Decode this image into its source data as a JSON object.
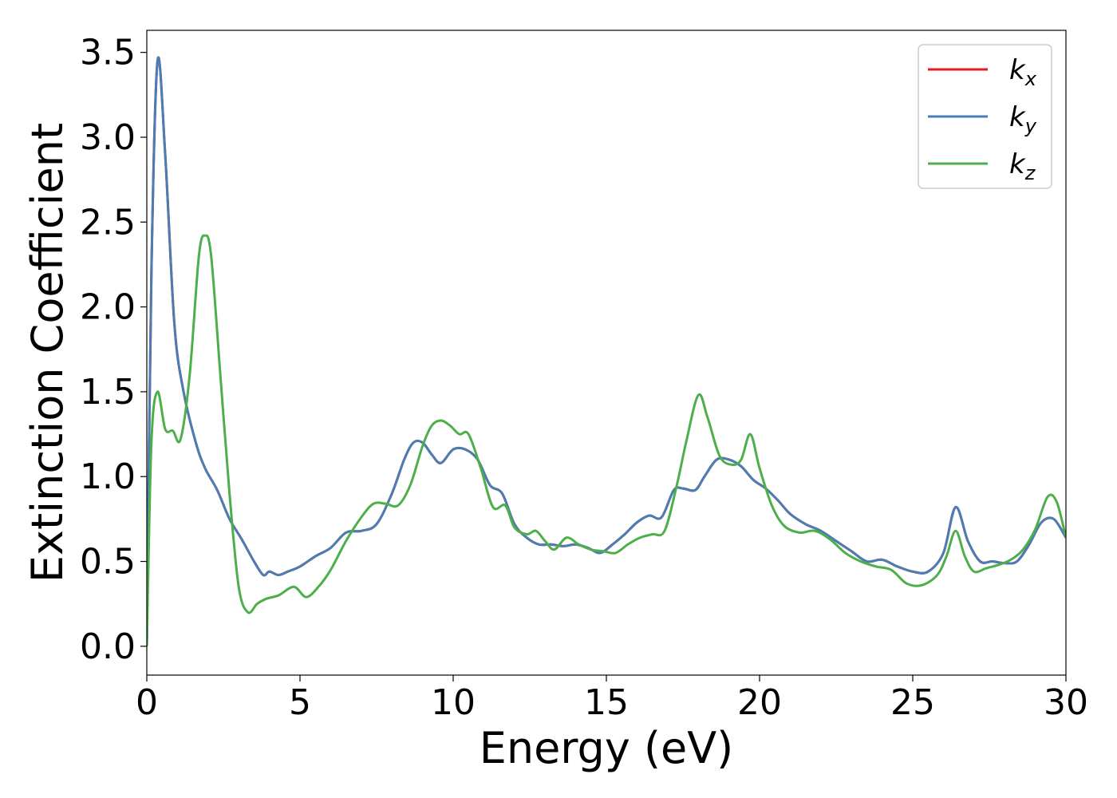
{
  "chart_data": {
    "type": "line",
    "xlabel": "Energy (eV)",
    "ylabel": "Extinction Coefficient",
    "xlim": [
      0,
      30
    ],
    "ylim": [
      -0.17,
      3.63
    ],
    "xticks": [
      0,
      5,
      10,
      15,
      20,
      25,
      30
    ],
    "xtick_labels": [
      "0",
      "5",
      "10",
      "15",
      "20",
      "25",
      "30"
    ],
    "yticks": [
      0.0,
      0.5,
      1.0,
      1.5,
      2.0,
      2.5,
      3.0,
      3.5
    ],
    "ytick_labels": [
      "0.0",
      "0.5",
      "1.0",
      "1.5",
      "2.0",
      "2.5",
      "3.0",
      "3.5"
    ],
    "grid": false,
    "legend_position": "top-right",
    "series": [
      {
        "name": "k",
        "subscript": "x",
        "color": "#e41a1c",
        "x": [
          0,
          0.15,
          0.35,
          0.6,
          0.9,
          1.2,
          1.6,
          1.9,
          2.3,
          2.7,
          3.1,
          3.5,
          3.8,
          4.0,
          4.3,
          4.6,
          5.0,
          5.5,
          6.0,
          6.5,
          7.0,
          7.5,
          8.0,
          8.4,
          8.7,
          9.0,
          9.3,
          9.6,
          10.0,
          10.4,
          10.8,
          11.2,
          11.6,
          12.0,
          12.4,
          12.8,
          13.2,
          13.6,
          14.0,
          14.4,
          14.8,
          15.2,
          15.6,
          16.0,
          16.4,
          16.8,
          17.2,
          17.5,
          17.9,
          18.2,
          18.6,
          19.0,
          19.4,
          19.8,
          20.2,
          20.6,
          21.0,
          21.5,
          22.0,
          22.5,
          23.0,
          23.5,
          24.0,
          24.5,
          25.0,
          25.5,
          26.0,
          26.4,
          26.8,
          27.2,
          27.6,
          28.0,
          28.4,
          28.8,
          29.2,
          29.6,
          30.0
        ],
        "y": [
          0.0,
          2.2,
          3.45,
          2.9,
          1.9,
          1.5,
          1.2,
          1.05,
          0.92,
          0.75,
          0.63,
          0.5,
          0.42,
          0.44,
          0.42,
          0.44,
          0.47,
          0.53,
          0.58,
          0.67,
          0.68,
          0.72,
          0.9,
          1.1,
          1.2,
          1.2,
          1.13,
          1.08,
          1.16,
          1.16,
          1.1,
          0.95,
          0.9,
          0.72,
          0.64,
          0.6,
          0.6,
          0.59,
          0.6,
          0.58,
          0.55,
          0.6,
          0.66,
          0.73,
          0.77,
          0.76,
          0.92,
          0.93,
          0.92,
          1.0,
          1.1,
          1.1,
          1.06,
          0.98,
          0.93,
          0.86,
          0.78,
          0.72,
          0.68,
          0.62,
          0.56,
          0.5,
          0.51,
          0.47,
          0.44,
          0.44,
          0.55,
          0.82,
          0.62,
          0.5,
          0.5,
          0.49,
          0.5,
          0.6,
          0.73,
          0.75,
          0.64
        ]
      },
      {
        "name": "k",
        "subscript": "y",
        "color": "#4a7db3",
        "x": [
          0,
          0.15,
          0.35,
          0.6,
          0.9,
          1.2,
          1.6,
          1.9,
          2.3,
          2.7,
          3.1,
          3.5,
          3.8,
          4.0,
          4.3,
          4.6,
          5.0,
          5.5,
          6.0,
          6.5,
          7.0,
          7.5,
          8.0,
          8.4,
          8.7,
          9.0,
          9.3,
          9.6,
          10.0,
          10.4,
          10.8,
          11.2,
          11.6,
          12.0,
          12.4,
          12.8,
          13.2,
          13.6,
          14.0,
          14.4,
          14.8,
          15.2,
          15.6,
          16.0,
          16.4,
          16.8,
          17.2,
          17.5,
          17.9,
          18.2,
          18.6,
          19.0,
          19.4,
          19.8,
          20.2,
          20.6,
          21.0,
          21.5,
          22.0,
          22.5,
          23.0,
          23.5,
          24.0,
          24.5,
          25.0,
          25.5,
          26.0,
          26.4,
          26.8,
          27.2,
          27.6,
          28.0,
          28.4,
          28.8,
          29.2,
          29.6,
          30.0
        ],
        "y": [
          0.0,
          2.2,
          3.45,
          2.9,
          1.9,
          1.5,
          1.2,
          1.05,
          0.92,
          0.75,
          0.63,
          0.5,
          0.42,
          0.44,
          0.42,
          0.44,
          0.47,
          0.53,
          0.58,
          0.67,
          0.68,
          0.72,
          0.9,
          1.1,
          1.2,
          1.2,
          1.13,
          1.08,
          1.16,
          1.16,
          1.1,
          0.95,
          0.9,
          0.72,
          0.64,
          0.6,
          0.6,
          0.59,
          0.6,
          0.58,
          0.55,
          0.6,
          0.66,
          0.73,
          0.77,
          0.76,
          0.92,
          0.93,
          0.92,
          1.0,
          1.1,
          1.1,
          1.06,
          0.98,
          0.93,
          0.86,
          0.78,
          0.72,
          0.68,
          0.62,
          0.56,
          0.5,
          0.51,
          0.47,
          0.44,
          0.44,
          0.55,
          0.82,
          0.62,
          0.5,
          0.5,
          0.49,
          0.5,
          0.6,
          0.73,
          0.75,
          0.64
        ]
      },
      {
        "name": "k",
        "subscript": "z",
        "color": "#4daf4a",
        "x": [
          0,
          0.15,
          0.35,
          0.6,
          0.85,
          1.1,
          1.4,
          1.7,
          1.9,
          2.1,
          2.4,
          2.7,
          3.0,
          3.3,
          3.6,
          3.9,
          4.3,
          4.8,
          5.2,
          5.6,
          6.0,
          6.5,
          7.0,
          7.4,
          7.8,
          8.2,
          8.6,
          9.0,
          9.3,
          9.6,
          9.9,
          10.2,
          10.5,
          10.9,
          11.3,
          11.7,
          12.0,
          12.4,
          12.7,
          13.0,
          13.3,
          13.7,
          14.1,
          14.5,
          14.9,
          15.3,
          15.7,
          16.1,
          16.5,
          16.9,
          17.3,
          17.6,
          18.0,
          18.3,
          18.7,
          19.1,
          19.4,
          19.7,
          20.0,
          20.4,
          20.8,
          21.3,
          21.8,
          22.3,
          22.8,
          23.3,
          23.8,
          24.3,
          24.8,
          25.3,
          25.8,
          26.1,
          26.4,
          26.7,
          27.0,
          27.4,
          27.8,
          28.2,
          28.6,
          29.0,
          29.4,
          29.7,
          30.0
        ],
        "y": [
          0.0,
          1.2,
          1.5,
          1.28,
          1.27,
          1.22,
          1.6,
          2.3,
          2.42,
          2.3,
          1.6,
          0.9,
          0.35,
          0.2,
          0.25,
          0.28,
          0.3,
          0.35,
          0.29,
          0.35,
          0.45,
          0.62,
          0.76,
          0.84,
          0.84,
          0.83,
          0.95,
          1.18,
          1.3,
          1.33,
          1.3,
          1.25,
          1.25,
          1.05,
          0.82,
          0.83,
          0.7,
          0.66,
          0.68,
          0.62,
          0.57,
          0.64,
          0.6,
          0.57,
          0.56,
          0.55,
          0.6,
          0.64,
          0.66,
          0.68,
          0.95,
          1.2,
          1.48,
          1.35,
          1.12,
          1.07,
          1.1,
          1.25,
          1.05,
          0.83,
          0.71,
          0.67,
          0.68,
          0.63,
          0.55,
          0.5,
          0.47,
          0.45,
          0.37,
          0.36,
          0.42,
          0.53,
          0.68,
          0.53,
          0.44,
          0.46,
          0.48,
          0.51,
          0.57,
          0.69,
          0.88,
          0.85,
          0.64
        ]
      }
    ]
  }
}
